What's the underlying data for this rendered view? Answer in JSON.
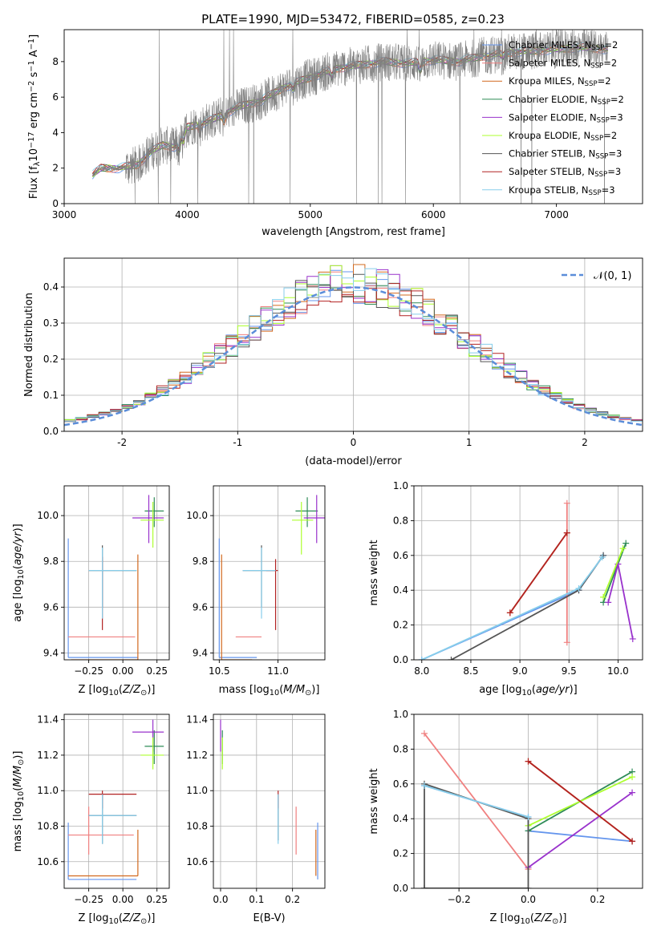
{
  "title": "PLATE=1990, MJD=53472, FIBERID=0585, z=0.23",
  "colors": {
    "chabrier_miles": "#6495ED",
    "salpeter_miles": "#F08080",
    "kroupa_miles": "#D2691E",
    "chabrier_elodie": "#2E8B57",
    "salpeter_elodie": "#9932CC",
    "kroupa_elodie": "#ADFF2F",
    "chabrier_stelib": "#555555",
    "salpeter_stelib": "#B22222",
    "kroupa_stelib": "#87CEEB",
    "data": "#808080",
    "normal": "#5B8DD9",
    "grid": "#B0B0B0"
  },
  "legend": [
    {
      "name": "Chabrier MILES, N",
      "sub": "SSP",
      "tail": "=2",
      "color": "#6495ED"
    },
    {
      "name": "Salpeter MILES, N",
      "sub": "SSP",
      "tail": "=2",
      "color": "#F08080"
    },
    {
      "name": "Kroupa MILES, N",
      "sub": "SSP",
      "tail": "=2",
      "color": "#D2691E"
    },
    {
      "name": "Chabrier ELODIE, N",
      "sub": "SSP",
      "tail": "=2",
      "color": "#2E8B57"
    },
    {
      "name": "Salpeter ELODIE, N",
      "sub": "SSP",
      "tail": "=3",
      "color": "#9932CC"
    },
    {
      "name": "Kroupa ELODIE, N",
      "sub": "SSP",
      "tail": "=2",
      "color": "#ADFF2F"
    },
    {
      "name": "Chabrier STELIB, N",
      "sub": "SSP",
      "tail": "=3",
      "color": "#555555"
    },
    {
      "name": "Salpeter STELIB, N",
      "sub": "SSP",
      "tail": "=3",
      "color": "#B22222"
    },
    {
      "name": "Kroupa STELIB, N",
      "sub": "SSP",
      "tail": "=3",
      "color": "#87CEEB"
    }
  ],
  "chart_data": [
    {
      "id": "spectrum",
      "type": "line",
      "xlabel": "wavelength [Angstrom, rest frame]",
      "ylabel": "Flux [f",
      "ylabel_sub": "λ",
      "ylabel_tail": "10",
      "ylabel_sup": "−17",
      "ylabel_tail2": " erg cm",
      "ylabel_sup2": "−2",
      "ylabel_tail3": " s",
      "ylabel_sup3": "−1",
      "ylabel_tail4": " A",
      "ylabel_sup4": "−1",
      "ylabel_end": "]",
      "xlim": [
        3000,
        7700
      ],
      "ylim": [
        0,
        9.8
      ],
      "xticks": [
        3000,
        4000,
        5000,
        6000,
        7000
      ],
      "yticks": [
        0,
        2,
        4,
        6,
        8
      ],
      "continuum": [
        [
          3230,
          1.6
        ],
        [
          3300,
          2.0
        ],
        [
          3450,
          2.0
        ],
        [
          3600,
          2.2
        ],
        [
          3700,
          2.9
        ],
        [
          3800,
          3.3
        ],
        [
          3900,
          3.2
        ],
        [
          4000,
          4.3
        ],
        [
          4200,
          4.7
        ],
        [
          4400,
          5.4
        ],
        [
          4600,
          5.8
        ],
        [
          4800,
          6.6
        ],
        [
          5000,
          7.1
        ],
        [
          5200,
          7.6
        ],
        [
          5400,
          7.8
        ],
        [
          5600,
          8.0
        ],
        [
          5800,
          7.9
        ],
        [
          6000,
          8.1
        ],
        [
          6200,
          8.0
        ],
        [
          6400,
          8.3
        ],
        [
          6600,
          8.5
        ],
        [
          6800,
          8.6
        ],
        [
          7000,
          8.7
        ],
        [
          7200,
          8.8
        ],
        [
          7400,
          8.7
        ]
      ],
      "series": [
        {
          "name": "data",
          "color": "#808080"
        },
        {
          "name": "Chabrier MILES",
          "color": "#6495ED"
        },
        {
          "name": "Salpeter MILES",
          "color": "#F08080"
        },
        {
          "name": "Kroupa MILES",
          "color": "#D2691E"
        },
        {
          "name": "Chabrier ELODIE",
          "color": "#2E8B57"
        },
        {
          "name": "Salpeter ELODIE",
          "color": "#9932CC"
        },
        {
          "name": "Kroupa ELODIE",
          "color": "#ADFF2F"
        },
        {
          "name": "Chabrier STELIB",
          "color": "#555555"
        },
        {
          "name": "Salpeter STELIB",
          "color": "#B22222"
        },
        {
          "name": "Kroupa STELIB",
          "color": "#87CEEB"
        }
      ]
    },
    {
      "id": "residuals",
      "type": "histogram",
      "xlabel": "(data-model)/error",
      "ylabel": "Normed distribution",
      "legend": "𝒩(0, 1)",
      "xlim": [
        -2.5,
        2.5
      ],
      "ylim": [
        0,
        0.48
      ],
      "xticks": [
        -2,
        -1,
        0,
        1,
        2
      ],
      "yticks": [
        0.0,
        0.1,
        0.2,
        0.3,
        0.4
      ],
      "bin_width": 0.1,
      "bin_start": -2.5,
      "model_order": [
        "chabrier_miles",
        "salpeter_miles",
        "kroupa_miles",
        "chabrier_elodie",
        "salpeter_elodie",
        "kroupa_elodie",
        "chabrier_stelib",
        "salpeter_stelib",
        "kroupa_stelib"
      ]
    },
    {
      "id": "age_vs_Z",
      "type": "errorbar",
      "xlabel": "Z [log",
      "xlabel_sub": "10",
      "xlabel_tail": "(Z/Z",
      "xlabel_sub2": "⊙",
      "xlabel_end": ")]",
      "ylabel": "age  [log",
      "ylabel_sub": "10",
      "ylabel_tail": "(age/yr)]",
      "xlim": [
        -0.43,
        0.34
      ],
      "ylim": [
        9.37,
        10.13
      ],
      "xticks": [
        -0.25,
        0.0,
        0.25
      ],
      "xticklabels": [
        "−0.25",
        "0.00",
        "0.25"
      ],
      "yticks": [
        9.4,
        9.6,
        9.8,
        10.0
      ],
      "points": [
        {
          "c": "#6495ED",
          "x": -0.4,
          "xl": -0.4,
          "xr": 0.11,
          "y": 9.38,
          "yl": 9.38,
          "yh": 9.9
        },
        {
          "c": "#F08080",
          "x": -0.25,
          "xl": -0.4,
          "xr": 0.09,
          "y": 9.47,
          "yl": 9.47,
          "yh": 9.47
        },
        {
          "c": "#D2691E",
          "x": 0.11,
          "xl": -0.38,
          "xr": 0.11,
          "y": 9.37,
          "yl": 9.37,
          "yh": 9.83
        },
        {
          "c": "#2E8B57",
          "x": 0.23,
          "xl": 0.16,
          "xr": 0.3,
          "y": 10.02,
          "yl": 9.95,
          "yh": 10.08
        },
        {
          "c": "#9932CC",
          "x": 0.19,
          "xl": 0.07,
          "xr": 0.3,
          "y": 9.99,
          "yl": 9.88,
          "yh": 10.09
        },
        {
          "c": "#ADFF2F",
          "x": 0.22,
          "xl": 0.13,
          "xr": 0.3,
          "y": 9.98,
          "yl": 9.86,
          "yh": 10.06
        },
        {
          "c": "#555555",
          "x": -0.15,
          "xl": -0.25,
          "xr": 0.1,
          "y": 9.76,
          "yl": 9.6,
          "yh": 9.87
        },
        {
          "c": "#B22222",
          "x": -0.15,
          "xl": -0.15,
          "xr": -0.15,
          "y": 9.62,
          "yl": 9.5,
          "yh": 9.82
        },
        {
          "c": "#87CEEB",
          "x": -0.15,
          "xl": -0.25,
          "xr": 0.1,
          "y": 9.76,
          "yl": 9.55,
          "yh": 9.86
        }
      ]
    },
    {
      "id": "age_vs_mass",
      "type": "errorbar",
      "xlabel": "mass [log",
      "xlabel_sub": "10",
      "xlabel_tail": "(M/M",
      "xlabel_sub2": "⊙",
      "xlabel_end": ")]",
      "xlim": [
        10.45,
        11.4
      ],
      "ylim": [
        9.37,
        10.13
      ],
      "xticks": [
        10.5,
        11.0
      ],
      "xticklabels": [
        "10.5",
        "11.0"
      ],
      "yticks": [
        9.4,
        9.6,
        9.8,
        10.0
      ],
      "points": [
        {
          "c": "#6495ED",
          "x": 10.5,
          "xl": 10.5,
          "xr": 10.82,
          "y": 9.38,
          "yl": 9.38,
          "yh": 9.9
        },
        {
          "c": "#F08080",
          "x": 10.75,
          "xl": 10.64,
          "xr": 10.86,
          "y": 9.47,
          "yl": 9.47,
          "yh": 9.47
        },
        {
          "c": "#D2691E",
          "x": 10.52,
          "xl": 10.52,
          "xr": 10.78,
          "y": 9.37,
          "yl": 9.37,
          "yh": 9.83
        },
        {
          "c": "#2E8B57",
          "x": 11.25,
          "xl": 11.15,
          "xr": 11.34,
          "y": 10.02,
          "yl": 9.95,
          "yh": 10.08
        },
        {
          "c": "#9932CC",
          "x": 11.33,
          "xl": 11.22,
          "xr": 11.4,
          "y": 9.99,
          "yl": 9.88,
          "yh": 10.09
        },
        {
          "c": "#ADFF2F",
          "x": 11.2,
          "xl": 11.12,
          "xr": 11.3,
          "y": 9.98,
          "yl": 9.83,
          "yh": 10.06
        },
        {
          "c": "#555555",
          "x": 10.86,
          "xl": 10.7,
          "xr": 10.98,
          "y": 9.76,
          "yl": 9.6,
          "yh": 9.87
        },
        {
          "c": "#B22222",
          "x": 10.98,
          "xl": 10.9,
          "xr": 11.0,
          "y": 9.76,
          "yl": 9.5,
          "yh": 9.81
        },
        {
          "c": "#87CEEB",
          "x": 10.86,
          "xl": 10.7,
          "xr": 10.98,
          "y": 9.76,
          "yl": 9.55,
          "yh": 9.86
        }
      ]
    },
    {
      "id": "weight_vs_age",
      "type": "line",
      "xlabel": "age  [log",
      "xlabel_sub": "10",
      "xlabel_tail": "(age/yr)]",
      "ylabel": "mass weight",
      "xlim": [
        7.92,
        10.25
      ],
      "ylim": [
        0,
        1.0
      ],
      "xticks": [
        8.0,
        8.5,
        9.0,
        9.5,
        10.0
      ],
      "xticklabels": [
        "8.0",
        "8.5",
        "9.0",
        "9.5",
        "10.0"
      ],
      "yticks": [
        0.0,
        0.2,
        0.4,
        0.6,
        0.8,
        1.0
      ],
      "yticklabels": [
        "0.0",
        "0.2",
        "0.4",
        "0.6",
        "0.8",
        "1.0"
      ],
      "series": [
        {
          "c": "#6495ED",
          "pts": [
            [
              8.0,
              0.0
            ],
            [
              9.6,
              0.4
            ],
            [
              9.85,
              0.6
            ]
          ]
        },
        {
          "c": "#F08080",
          "pts": [
            [
              9.48,
              0.9
            ],
            [
              9.48,
              0.1
            ]
          ]
        },
        {
          "c": "#D2691E",
          "pts": [
            [
              8.9,
              0.27
            ],
            [
              9.48,
              0.73
            ]
          ]
        },
        {
          "c": "#2E8B57",
          "pts": [
            [
              9.85,
              0.33
            ],
            [
              10.08,
              0.67
            ]
          ]
        },
        {
          "c": "#9932CC",
          "pts": [
            [
              9.9,
              0.33
            ],
            [
              10.0,
              0.55
            ],
            [
              10.15,
              0.12
            ]
          ]
        },
        {
          "c": "#ADFF2F",
          "pts": [
            [
              9.85,
              0.36
            ],
            [
              10.05,
              0.64
            ]
          ]
        },
        {
          "c": "#555555",
          "pts": [
            [
              8.3,
              0.0
            ],
            [
              9.6,
              0.4
            ],
            [
              9.85,
              0.6
            ]
          ]
        },
        {
          "c": "#B22222",
          "pts": [
            [
              8.9,
              0.27
            ],
            [
              9.48,
              0.73
            ]
          ]
        },
        {
          "c": "#87CEEB",
          "pts": [
            [
              8.0,
              0.0
            ],
            [
              9.6,
              0.41
            ],
            [
              9.84,
              0.59
            ]
          ]
        }
      ]
    },
    {
      "id": "mass_vs_Z",
      "type": "errorbar",
      "xlabel": "Z [log",
      "xlabel_sub": "10",
      "xlabel_tail": "(Z/Z",
      "xlabel_sub2": "⊙",
      "xlabel_end": ")]",
      "ylabel": "mass [log",
      "ylabel_sub": "10",
      "ylabel_tail": "(M/M",
      "ylabel_sub2": "⊙",
      "ylabel_end": ")]",
      "xlim": [
        -0.43,
        0.34
      ],
      "ylim": [
        10.45,
        11.43
      ],
      "xticks": [
        -0.25,
        0.0,
        0.25
      ],
      "xticklabels": [
        "−0.25",
        "0.00",
        "0.25"
      ],
      "yticks": [
        10.6,
        10.8,
        11.0,
        11.2,
        11.4
      ],
      "points": [
        {
          "c": "#6495ED",
          "x": -0.4,
          "xl": -0.4,
          "xr": 0.1,
          "y": 10.5,
          "yl": 10.5,
          "yh": 10.82
        },
        {
          "c": "#F08080",
          "x": -0.25,
          "xl": -0.4,
          "xr": 0.08,
          "y": 10.75,
          "yl": 10.64,
          "yh": 10.91
        },
        {
          "c": "#D2691E",
          "x": 0.11,
          "xl": -0.4,
          "xr": 0.11,
          "y": 10.52,
          "yl": 10.52,
          "yh": 10.78
        },
        {
          "c": "#2E8B57",
          "x": 0.23,
          "xl": 0.16,
          "xr": 0.3,
          "y": 11.25,
          "yl": 11.15,
          "yh": 11.34
        },
        {
          "c": "#9932CC",
          "x": 0.22,
          "xl": 0.07,
          "xr": 0.3,
          "y": 11.33,
          "yl": 11.22,
          "yh": 11.4
        },
        {
          "c": "#ADFF2F",
          "x": 0.22,
          "xl": 0.13,
          "xr": 0.3,
          "y": 11.2,
          "yl": 11.12,
          "yh": 11.3
        },
        {
          "c": "#555555",
          "x": -0.15,
          "xl": -0.25,
          "xr": 0.1,
          "y": 10.86,
          "yl": 10.7,
          "yh": 10.98
        },
        {
          "c": "#B22222",
          "x": -0.15,
          "xl": -0.25,
          "xr": 0.1,
          "y": 10.98,
          "yl": 10.9,
          "yh": 11.0
        },
        {
          "c": "#87CEEB",
          "x": -0.15,
          "xl": -0.25,
          "xr": 0.1,
          "y": 10.86,
          "yl": 10.7,
          "yh": 10.98
        }
      ]
    },
    {
      "id": "mass_vs_ebv",
      "type": "errorbar",
      "xlabel": "E(B-V)",
      "xlim": [
        -0.02,
        0.29
      ],
      "ylim": [
        10.45,
        11.43
      ],
      "xticks": [
        0.0,
        0.1,
        0.2
      ],
      "xticklabels": [
        "0.0",
        "0.1",
        "0.2"
      ],
      "yticks": [
        10.6,
        10.8,
        11.0,
        11.2,
        11.4
      ],
      "points": [
        {
          "c": "#6495ED",
          "x": 0.27,
          "xl": 0.27,
          "xr": 0.27,
          "y": 10.5,
          "yl": 10.5,
          "yh": 10.82
        },
        {
          "c": "#F08080",
          "x": 0.21,
          "xl": 0.21,
          "xr": 0.21,
          "y": 10.75,
          "yl": 10.64,
          "yh": 10.91
        },
        {
          "c": "#D2691E",
          "x": 0.265,
          "xl": 0.265,
          "xr": 0.265,
          "y": 10.52,
          "yl": 10.52,
          "yh": 10.78
        },
        {
          "c": "#2E8B57",
          "x": 0.005,
          "xl": 0.005,
          "xr": 0.005,
          "y": 11.25,
          "yl": 11.15,
          "yh": 11.34
        },
        {
          "c": "#9932CC",
          "x": 0.0,
          "xl": 0.0,
          "xr": 0.0,
          "y": 11.33,
          "yl": 11.22,
          "yh": 11.4
        },
        {
          "c": "#ADFF2F",
          "x": 0.005,
          "xl": 0.005,
          "xr": 0.005,
          "y": 11.2,
          "yl": 11.12,
          "yh": 11.3
        },
        {
          "c": "#555555",
          "x": 0.16,
          "xl": 0.16,
          "xr": 0.16,
          "y": 10.86,
          "yl": 10.72,
          "yh": 10.98
        },
        {
          "c": "#B22222",
          "x": 0.16,
          "xl": 0.16,
          "xr": 0.16,
          "y": 10.98,
          "yl": 10.9,
          "yh": 11.0
        },
        {
          "c": "#87CEEB",
          "x": 0.16,
          "xl": 0.16,
          "xr": 0.16,
          "y": 10.86,
          "yl": 10.7,
          "yh": 10.98
        }
      ]
    },
    {
      "id": "weight_vs_Z",
      "type": "line",
      "xlabel": "Z [log",
      "xlabel_sub": "10",
      "xlabel_tail": "(Z/Z",
      "xlabel_sub2": "⊙",
      "xlabel_end": ")]",
      "ylabel": "mass weight",
      "xlim": [
        -0.33,
        0.33
      ],
      "ylim": [
        0,
        1.0
      ],
      "xticks": [
        -0.2,
        0.0,
        0.2
      ],
      "xticklabels": [
        "−0.2",
        "0.0",
        "0.2"
      ],
      "yticks": [
        0.0,
        0.2,
        0.4,
        0.6,
        0.8,
        1.0
      ],
      "yticklabels": [
        "0.0",
        "0.2",
        "0.4",
        "0.6",
        "0.8",
        "1.0"
      ],
      "series": [
        {
          "c": "#6495ED",
          "pts": [
            [
              -0.3,
              0.59
            ],
            [
              0.0,
              0.41
            ],
            [
              0.0,
              0.33
            ],
            [
              0.3,
              0.27
            ]
          ]
        },
        {
          "c": "#F08080",
          "pts": [
            [
              -0.3,
              0.89
            ],
            [
              0.0,
              0.11
            ]
          ]
        },
        {
          "c": "#D2691E",
          "pts": [
            [
              0.0,
              0.73
            ],
            [
              0.3,
              0.27
            ]
          ]
        },
        {
          "c": "#2E8B57",
          "pts": [
            [
              0.0,
              0.33
            ],
            [
              0.3,
              0.67
            ]
          ]
        },
        {
          "c": "#9932CC",
          "pts": [
            [
              0.0,
              0.12
            ],
            [
              0.3,
              0.55
            ]
          ]
        },
        {
          "c": "#ADFF2F",
          "pts": [
            [
              0.0,
              0.36
            ],
            [
              0.3,
              0.64
            ]
          ]
        },
        {
          "c": "#555555",
          "pts": [
            [
              -0.3,
              0.0
            ],
            [
              -0.3,
              0.6
            ],
            [
              0.0,
              0.4
            ],
            [
              0.0,
              0.0
            ],
            [
              -0.3,
              0.0
            ]
          ]
        },
        {
          "c": "#B22222",
          "pts": [
            [
              0.0,
              0.73
            ],
            [
              0.3,
              0.27
            ]
          ]
        },
        {
          "c": "#87CEEB",
          "pts": [
            [
              -0.3,
              0.59
            ],
            [
              0.0,
              0.41
            ]
          ]
        }
      ]
    }
  ]
}
